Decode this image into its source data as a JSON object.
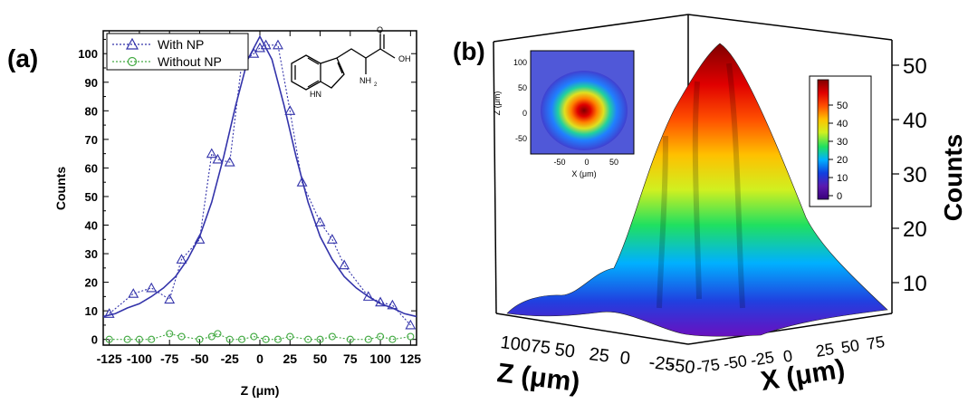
{
  "panels": [
    {
      "label": "(a)",
      "chart_data": {
        "type": "line",
        "title": "",
        "xlabel": "Z (μm)",
        "ylabel": "Counts",
        "xlim": [
          -130,
          130
        ],
        "ylim": [
          -2,
          108
        ],
        "xticks": [
          -125,
          -100,
          -75,
          -50,
          -25,
          0,
          25,
          50,
          75,
          100,
          125
        ],
        "xtick_labels": [
          "-125",
          "-100",
          "-75",
          "-50",
          "-25",
          "0",
          "25",
          "50",
          "75",
          "100",
          "125"
        ],
        "yticks": [
          0,
          10,
          20,
          30,
          40,
          50,
          60,
          70,
          80,
          90,
          100
        ],
        "grid": false,
        "legend": "top-left",
        "series": [
          {
            "name": "With NP",
            "color": "#3333aa",
            "marker": "triangle",
            "x": [
              -125,
              -105,
              -90,
              -75,
              -65,
              -50,
              -40,
              -35,
              -25,
              -15,
              -5,
              0,
              5,
              15,
              25,
              35,
              50,
              60,
              70,
              90,
              100,
              110,
              125
            ],
            "values": [
              9,
              16,
              18,
              14,
              28,
              35,
              65,
              63,
              62,
              97,
              100,
              102,
              103,
              103,
              80,
              55,
              41,
              35,
              26,
              15,
              13,
              12,
              5
            ]
          },
          {
            "name": "Without NP",
            "color": "#44aa44",
            "marker": "circle",
            "x": [
              -125,
              -110,
              -100,
              -90,
              -75,
              -65,
              -50,
              -40,
              -35,
              -25,
              -15,
              -5,
              5,
              15,
              25,
              40,
              50,
              60,
              75,
              90,
              100,
              110,
              125
            ],
            "values": [
              0,
              0,
              0,
              0,
              2,
              1,
              0,
              1,
              2,
              0,
              0,
              1,
              0,
              0,
              1,
              0,
              0,
              1,
              0,
              0,
              1,
              0,
              1
            ]
          },
          {
            "name": "fit",
            "color": "#3333aa",
            "style": "solid",
            "x": [
              -130,
              -120,
              -110,
              -100,
              -90,
              -80,
              -70,
              -60,
              -50,
              -40,
              -30,
              -20,
              -10,
              0,
              10,
              20,
              30,
              40,
              50,
              60,
              70,
              80,
              90,
              100,
              110,
              120,
              130
            ],
            "values": [
              8,
              9,
              11,
              12.5,
              15,
              18,
              22,
              28,
              36,
              48,
              64,
              82,
              98,
              106,
              98,
              82,
              64,
              48,
              36,
              28,
              22,
              18,
              15,
              12.5,
              11,
              9,
              8
            ]
          }
        ]
      }
    },
    {
      "label": "(b)",
      "chart_data": {
        "type": "surface",
        "zlabel": "Counts",
        "xlabel": "Z (μm)",
        "ylabel": "X (μm)",
        "zticks": [
          "10",
          "20",
          "30",
          "40",
          "50"
        ],
        "z_axis_labels": [
          "10075",
          "50",
          "25",
          "0",
          "-25",
          "-50"
        ],
        "x_axis_labels": [
          "-75",
          "-50",
          "-25",
          "0",
          "25",
          "50",
          "75"
        ],
        "colorbar": {
          "ticks": [
            "0",
            "10",
            "20",
            "30",
            "40",
            "50"
          ],
          "range": [
            0,
            55
          ],
          "colors": [
            "#3a007a",
            "#5a1ab0",
            "#1040e0",
            "#00b0ff",
            "#20e060",
            "#d0f020",
            "#ffc000",
            "#ff5000",
            "#e00000",
            "#800000"
          ]
        },
        "inset": {
          "type": "heatmap",
          "xlabel": "X (μm)",
          "ylabel": "Z (μm)",
          "xticks": [
            "-50",
            "0",
            "50"
          ],
          "yticks": [
            "100",
            "50",
            "0",
            "-50"
          ]
        }
      }
    }
  ]
}
